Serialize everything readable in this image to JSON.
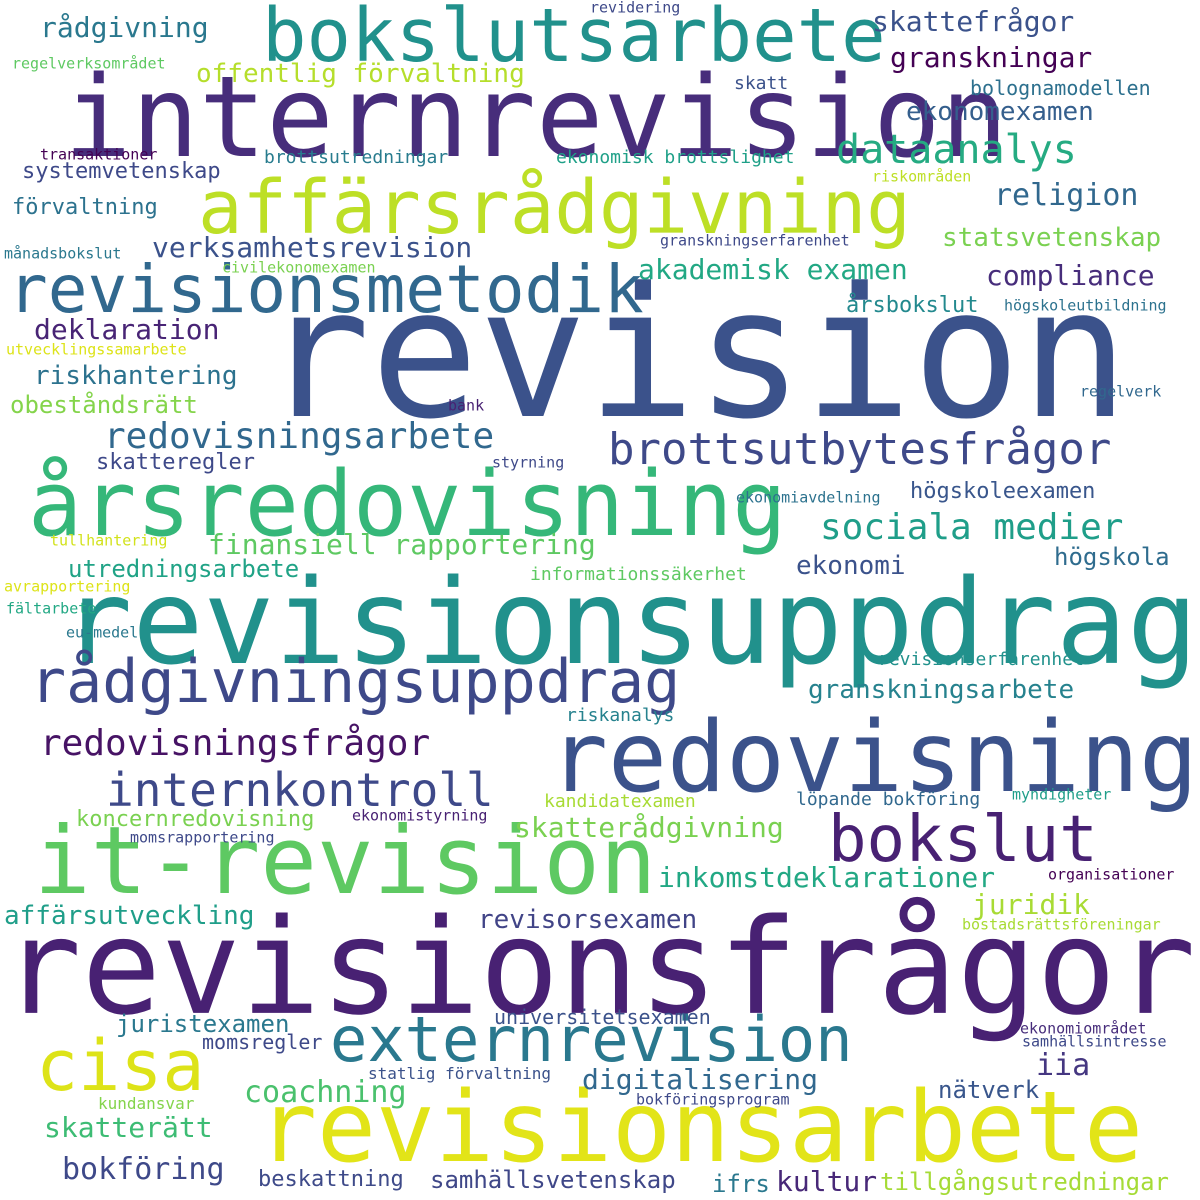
{
  "words": [
    {
      "text": "revision",
      "color": "#3b528b"
    },
    {
      "text": "revisionsfrågor",
      "color": "#482173"
    },
    {
      "text": "revisionsuppdrag",
      "color": "#21918c"
    },
    {
      "text": "internrevision",
      "color": "#472d7b"
    },
    {
      "text": "revisionsarbete",
      "color": "#e2e418"
    },
    {
      "text": "redovisning",
      "color": "#3b528b"
    },
    {
      "text": "årsredovisning",
      "color": "#35b779"
    },
    {
      "text": "it-revision",
      "color": "#5ec962"
    },
    {
      "text": "affärsrådgivning",
      "color": "#bddf26"
    },
    {
      "text": "bokslutsarbete",
      "color": "#21918c"
    },
    {
      "text": "revisionsmetodik",
      "color": "#31688e"
    },
    {
      "text": "rådgivningsuppdrag",
      "color": "#3e4989"
    },
    {
      "text": "externrevision",
      "color": "#2a788e"
    },
    {
      "text": "bokslut",
      "color": "#482173"
    },
    {
      "text": "cisa",
      "color": "#dde318"
    },
    {
      "text": "brottsutbytesfrågor",
      "color": "#3e4989"
    },
    {
      "text": "internkontroll",
      "color": "#3e4989"
    },
    {
      "text": "redovisningsfrågor",
      "color": "#471365"
    },
    {
      "text": "redovisningsarbete",
      "color": "#31688e"
    },
    {
      "text": "sociala medier",
      "color": "#1f9e89"
    },
    {
      "text": "dataanalys",
      "color": "#25ab82"
    },
    {
      "text": "skatterådgivning",
      "color": "#7ad151"
    },
    {
      "text": "inkomstdeklarationer",
      "color": "#22a884"
    },
    {
      "text": "finansiell rapportering",
      "color": "#5ec962"
    },
    {
      "text": "granskningsarbete",
      "color": "#26828e"
    },
    {
      "text": "verksamhetsrevision",
      "color": "#3b528b"
    },
    {
      "text": "akademisk examen",
      "color": "#22a884"
    },
    {
      "text": "offentlig förvaltning",
      "color": "#b5de2b"
    },
    {
      "text": "skattefrågor",
      "color": "#3b528b"
    },
    {
      "text": "granskningar",
      "color": "#440154"
    },
    {
      "text": "ekonomexamen",
      "color": "#355f8d"
    },
    {
      "text": "religion",
      "color": "#31688e"
    },
    {
      "text": "compliance",
      "color": "#472d7b"
    },
    {
      "text": "statsvetenskap",
      "color": "#7ad151"
    },
    {
      "text": "rådgivning",
      "color": "#2a788e"
    },
    {
      "text": "deklaration",
      "color": "#482475"
    },
    {
      "text": "riskhantering",
      "color": "#2c728e"
    },
    {
      "text": "obeståndsrätt",
      "color": "#84d44b"
    },
    {
      "text": "skatteregler",
      "color": "#3e4989"
    },
    {
      "text": "utredningsarbete",
      "color": "#20a386"
    },
    {
      "text": "digitalisering",
      "color": "#31688e"
    },
    {
      "text": "coachning",
      "color": "#4ac16d"
    },
    {
      "text": "skatterätt",
      "color": "#3dbc74"
    },
    {
      "text": "bokföring",
      "color": "#3e4989"
    },
    {
      "text": "juristexamen",
      "color": "#2a788e"
    },
    {
      "text": "affärsutveckling",
      "color": "#1f9e89"
    },
    {
      "text": "koncernredovisning",
      "color": "#7ad151"
    },
    {
      "text": "revisorsexamen",
      "color": "#414487"
    },
    {
      "text": "juridik",
      "color": "#a8db34"
    },
    {
      "text": "iia",
      "color": "#453781"
    },
    {
      "text": "kultur",
      "color": "#482878"
    },
    {
      "text": "samhällsvetenskap",
      "color": "#3f4788"
    },
    {
      "text": "tillgångsutredningar",
      "color": "#a5db36"
    },
    {
      "text": "beskattning",
      "color": "#3e4a89"
    },
    {
      "text": "ifrs",
      "color": "#2a788e"
    },
    {
      "text": "nätverk",
      "color": "#39568c"
    },
    {
      "text": "ekonomi",
      "color": "#3b528b"
    },
    {
      "text": "högskola",
      "color": "#2f6c8e"
    },
    {
      "text": "högskoleexamen",
      "color": "#39568c"
    },
    {
      "text": "årsbokslut",
      "color": "#23898e"
    },
    {
      "text": "bolognamodellen",
      "color": "#2d708e"
    },
    {
      "text": "systemvetenskap",
      "color": "#3e4989"
    },
    {
      "text": "förvaltning",
      "color": "#2c728e"
    },
    {
      "text": "universitetsexamen",
      "color": "#3b528b"
    },
    {
      "text": "momsregler",
      "color": "#3e4989"
    },
    {
      "text": "brottsutredningar",
      "color": "#287c8e"
    },
    {
      "text": "ekonomisk brottslighet",
      "color": "#1fa088"
    },
    {
      "text": "skatt",
      "color": "#3b528b"
    },
    {
      "text": "löpande bokföring",
      "color": "#31688e"
    },
    {
      "text": "kandidatexamen",
      "color": "#a8db34"
    },
    {
      "text": "informationssäkerhet",
      "color": "#5ec962"
    },
    {
      "text": "riskanalys",
      "color": "#26828e"
    },
    {
      "text": "revisionserfarenhet",
      "color": "#21918c"
    },
    {
      "text": "ekonomiavdelning",
      "color": "#2c728e"
    },
    {
      "text": "organisationer",
      "color": "#440154"
    },
    {
      "text": "bostadsrättsföreningar",
      "color": "#a8db34"
    },
    {
      "text": "ekonomiområdet",
      "color": "#472d7b"
    },
    {
      "text": "samhällsintresse",
      "color": "#3e4989"
    },
    {
      "text": "statlig förvaltning",
      "color": "#3b528b"
    },
    {
      "text": "bokföringsprogram",
      "color": "#3e4989"
    },
    {
      "text": "kundansvar",
      "color": "#84d44b"
    },
    {
      "text": "momsrapportering",
      "color": "#3e4989"
    },
    {
      "text": "ekonomistyrning",
      "color": "#482173"
    },
    {
      "text": "myndigheter",
      "color": "#1f9e89"
    },
    {
      "text": "regelverk",
      "color": "#31688e"
    },
    {
      "text": "högskoleutbildning",
      "color": "#2c728e"
    },
    {
      "text": "granskningserfarenhet",
      "color": "#3e4989"
    },
    {
      "text": "riskområden",
      "color": "#bddf26"
    },
    {
      "text": "styrning",
      "color": "#3e4989"
    },
    {
      "text": "bank",
      "color": "#482173"
    },
    {
      "text": "månadsbokslut",
      "color": "#2a788e"
    },
    {
      "text": "civilekonomexamen",
      "color": "#7ad151"
    },
    {
      "text": "utvecklingssamarbete",
      "color": "#dde318"
    },
    {
      "text": "transaktioner",
      "color": "#440154"
    },
    {
      "text": "regelverksområdet",
      "color": "#5ec962"
    },
    {
      "text": "revidering",
      "color": "#3e4989"
    },
    {
      "text": "tullhantering",
      "color": "#d2e21b"
    },
    {
      "text": "avrapportering",
      "color": "#dde318"
    },
    {
      "text": "fältarbete",
      "color": "#22a884"
    },
    {
      "text": "eu-medel",
      "color": "#2a788e"
    }
  ]
}
